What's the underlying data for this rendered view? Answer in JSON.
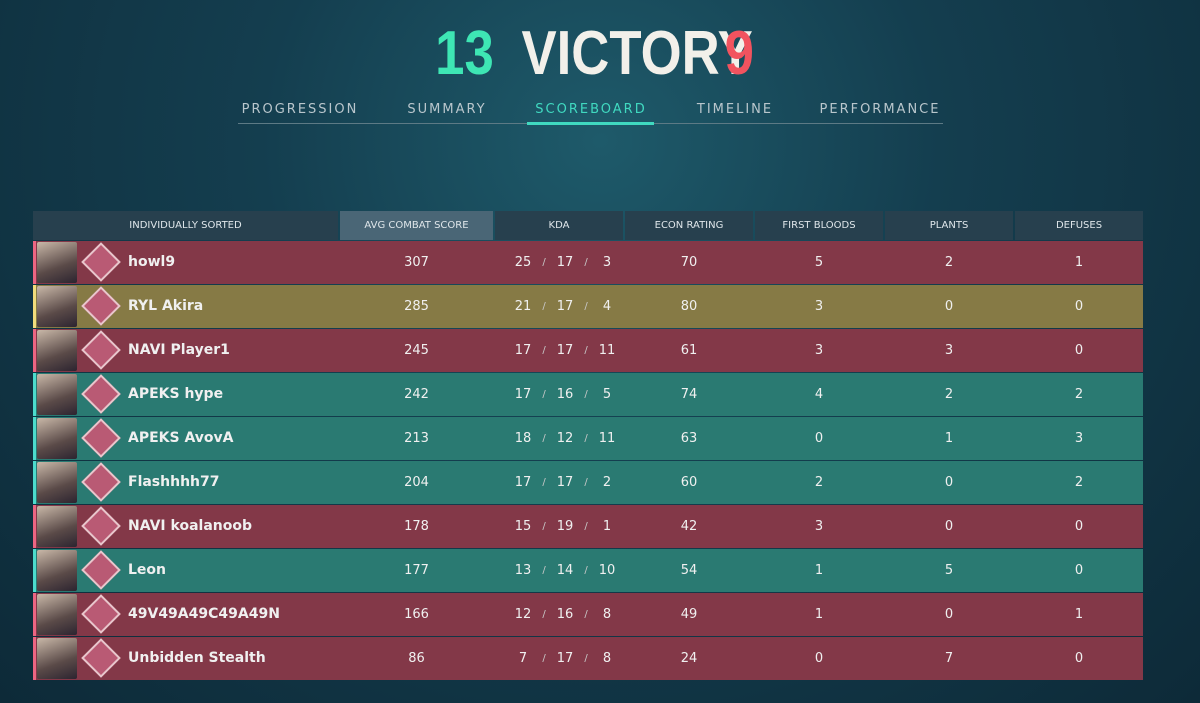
{
  "header": {
    "score_left": 13,
    "result": "VICTORY",
    "score_right": 9,
    "tabs": [
      "PROGRESSION",
      "SUMMARY",
      "SCOREBOARD",
      "TIMELINE",
      "PERFORMANCE"
    ],
    "active_tab": 2
  },
  "table": {
    "columns": [
      "INDIVIDUALLY SORTED",
      "AVG COMBAT SCORE",
      "KDA",
      "ECON RATING",
      "FIRST BLOODS",
      "PLANTS",
      "DEFUSES"
    ],
    "kda_separator": "/",
    "rows": [
      {
        "name": "howl9",
        "acs": 307,
        "kda": [
          25,
          17,
          3
        ],
        "econ": 70,
        "first_bloods": 5,
        "plants": 2,
        "defuses": 1,
        "color": "#833848"
      },
      {
        "name": "RYL Akira",
        "acs": 285,
        "kda": [
          21,
          17,
          4
        ],
        "econ": 80,
        "first_bloods": 3,
        "plants": 0,
        "defuses": 0,
        "color": "#867a45"
      },
      {
        "name": "NAVI Player1",
        "acs": 245,
        "kda": [
          17,
          17,
          11
        ],
        "econ": 61,
        "first_bloods": 3,
        "plants": 3,
        "defuses": 0,
        "color": "#833848"
      },
      {
        "name": "APEKS hype",
        "acs": 242,
        "kda": [
          17,
          16,
          5
        ],
        "econ": 74,
        "first_bloods": 4,
        "plants": 2,
        "defuses": 2,
        "color": "#2a7a72"
      },
      {
        "name": "APEKS AvovA",
        "acs": 213,
        "kda": [
          18,
          12,
          11
        ],
        "econ": 63,
        "first_bloods": 0,
        "plants": 1,
        "defuses": 3,
        "color": "#2a7a72"
      },
      {
        "name": "Flashhhh77",
        "acs": 204,
        "kda": [
          17,
          17,
          2
        ],
        "econ": 60,
        "first_bloods": 2,
        "plants": 0,
        "defuses": 2,
        "color": "#2a7a72"
      },
      {
        "name": "NAVI koalanoob",
        "acs": 178,
        "kda": [
          15,
          19,
          1
        ],
        "econ": 42,
        "first_bloods": 3,
        "plants": 0,
        "defuses": 0,
        "color": "#833848"
      },
      {
        "name": "Leon",
        "acs": 177,
        "kda": [
          13,
          14,
          10
        ],
        "econ": 54,
        "first_bloods": 1,
        "plants": 5,
        "defuses": 0,
        "color": "#2a7a72"
      },
      {
        "name": "49V49A49C49A49N",
        "acs": 166,
        "kda": [
          12,
          16,
          8
        ],
        "econ": 49,
        "first_bloods": 1,
        "plants": 0,
        "defuses": 1,
        "color": "#833848"
      },
      {
        "name": "Unbidden Stealth",
        "acs": 86,
        "kda": [
          7,
          17,
          8
        ],
        "econ": 24,
        "first_bloods": 0,
        "plants": 7,
        "defuses": 0,
        "color": "#833848"
      }
    ]
  }
}
